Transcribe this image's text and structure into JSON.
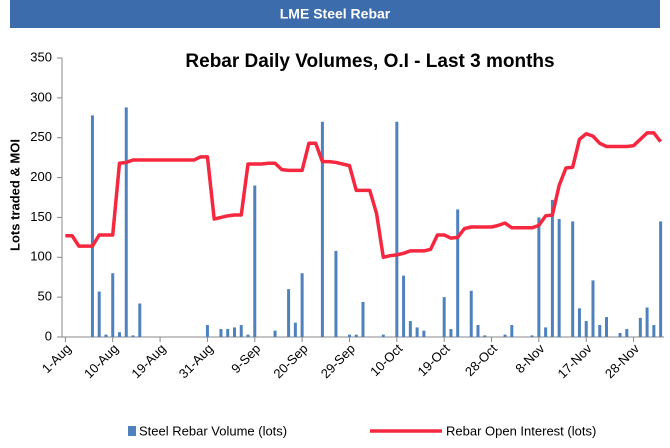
{
  "header": "LME Steel Rebar",
  "chart_data": {
    "type": "bar-line",
    "title": "Rebar Daily Volumes, O.I - Last 3 months",
    "y_label": "Lots traded & MOI",
    "categories": [
      "1-Aug",
      null,
      null,
      null,
      null,
      null,
      null,
      "10-Aug",
      null,
      null,
      null,
      null,
      null,
      null,
      "19-Aug",
      null,
      null,
      null,
      null,
      null,
      null,
      "31-Aug",
      null,
      null,
      null,
      null,
      null,
      null,
      "9-Sep",
      null,
      null,
      null,
      null,
      null,
      null,
      "20-Sep",
      null,
      null,
      null,
      null,
      null,
      null,
      "29-Sep",
      null,
      null,
      null,
      null,
      null,
      null,
      "10-Oct",
      null,
      null,
      null,
      null,
      null,
      null,
      "19-Oct",
      null,
      null,
      null,
      null,
      null,
      null,
      "28-Oct",
      null,
      null,
      null,
      null,
      null,
      null,
      "8-Nov",
      null,
      null,
      null,
      null,
      null,
      null,
      "17-Nov",
      null,
      null,
      null,
      null,
      null,
      null,
      "28-Nov",
      null,
      null,
      null,
      null
    ],
    "series": [
      {
        "name": "Steel Rebar Volume (lots)",
        "kind": "bar",
        "color": "#4f81bd",
        "values": [
          0,
          0,
          0,
          0,
          278,
          57,
          3,
          80,
          6,
          288,
          2,
          42,
          0,
          0,
          0,
          0,
          0,
          0,
          0,
          0,
          0,
          15,
          0,
          10,
          10,
          12,
          15,
          3,
          190,
          0,
          0,
          8,
          0,
          60,
          18,
          80,
          0,
          0,
          270,
          0,
          108,
          0,
          3,
          3,
          44,
          0,
          0,
          3,
          0,
          270,
          77,
          20,
          12,
          8,
          0,
          0,
          50,
          10,
          160,
          0,
          58,
          15,
          2,
          0,
          0,
          3,
          15,
          0,
          0,
          2,
          150,
          12,
          172,
          148,
          0,
          145,
          36,
          20,
          71,
          15,
          25,
          0,
          5,
          10,
          0,
          24,
          37,
          15,
          145
        ]
      },
      {
        "name": "Rebar Open Interest (lots)",
        "kind": "line",
        "color": "#f5283f",
        "values": [
          127,
          127,
          114,
          114,
          114,
          128,
          128,
          128,
          218,
          219,
          222,
          222,
          222,
          222,
          222,
          222,
          222,
          222,
          222,
          222,
          226,
          226,
          148,
          150,
          152,
          153,
          153,
          217,
          217,
          217,
          218,
          218,
          210,
          209,
          209,
          209,
          243,
          243,
          220,
          220,
          219,
          217,
          215,
          184,
          184,
          184,
          155,
          100,
          102,
          103,
          105,
          108,
          108,
          108,
          110,
          128,
          128,
          124,
          125,
          136,
          138,
          138,
          138,
          138,
          140,
          143,
          137,
          137,
          137,
          137,
          140,
          152,
          153,
          190,
          212,
          213,
          248,
          255,
          252,
          243,
          239,
          239,
          239,
          239,
          240,
          248,
          256,
          256,
          245
        ]
      }
    ],
    "ylim": [
      0,
      350
    ],
    "yticks": [
      0,
      50,
      100,
      150,
      200,
      250,
      300,
      350
    ],
    "grid": false
  }
}
